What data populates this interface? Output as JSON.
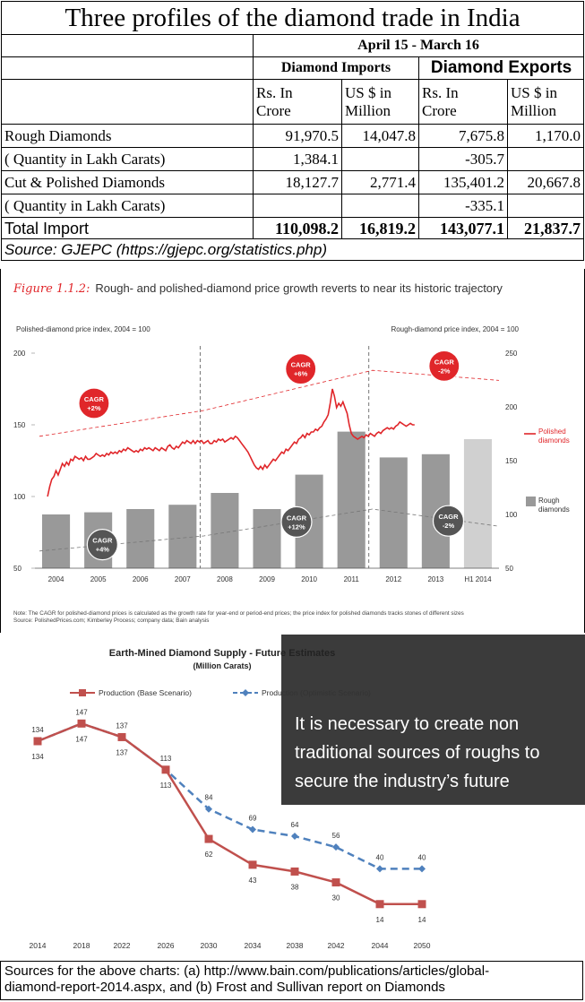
{
  "table": {
    "title": "Three profiles of the diamond trade in India",
    "period": "April 15 - March 16",
    "imports_header": "Diamond Imports",
    "exports_header": "Diamond Exports",
    "unit_rs_1": "Rs. In",
    "unit_rs_2": "Crore",
    "unit_us_1": "US $ in",
    "unit_us_2": "Million",
    "rows": [
      {
        "label": "Rough Diamonds",
        "imp_rs": "91,970.5",
        "imp_us": "14,047.8",
        "exp_rs": "7,675.8",
        "exp_us": "1,170.0"
      },
      {
        "label": "( Quantity in Lakh Carats)",
        "imp_rs": "1,384.1",
        "imp_us": "",
        "exp_rs": "-305.7",
        "exp_us": ""
      },
      {
        "label": "Cut & Polished Diamonds",
        "imp_rs": "18,127.7",
        "imp_us": "2,771.4",
        "exp_rs": "135,401.2",
        "exp_us": "20,667.8"
      },
      {
        "label": "( Quantity in Lakh Carats)",
        "imp_rs": "",
        "imp_us": "",
        "exp_rs": "-335.1",
        "exp_us": ""
      }
    ],
    "total": {
      "label": "Total Import",
      "imp_rs": "110,098.2",
      "imp_us": "16,819.2",
      "exp_rs": "143,077.1",
      "exp_us": "21,837.7"
    },
    "source": "Source: GJEPC (https://gjepc.org/statistics.php)"
  },
  "chart_data": [
    {
      "type": "bar",
      "figure_label": "Figure 1.1.2:",
      "title": "Rough- and polished-diamond price growth reverts to near its historic trajectory",
      "left_axis_label": "Polished-diamond price index, 2004 = 100",
      "right_axis_label": "Rough-diamond price index, 2004 = 100",
      "left_ticks": [
        50,
        100,
        150,
        200
      ],
      "right_ticks": [
        50,
        100,
        150,
        200,
        250
      ],
      "ylim_left": [
        50,
        200
      ],
      "ylim_right": [
        50,
        250
      ],
      "categories": [
        "2004",
        "2005",
        "2006",
        "2007",
        "2008",
        "2009",
        "2010",
        "2011",
        "2012",
        "2013",
        "H1 2014"
      ],
      "series": [
        {
          "name": "Rough diamonds",
          "axis": "right",
          "values": [
            100,
            102,
            105,
            109,
            120,
            105,
            137,
            177,
            153,
            156,
            170
          ]
        },
        {
          "name": "Polished diamonds",
          "axis": "left",
          "values": [
            [
              0,
              100
            ],
            [
              0.05,
              107
            ],
            [
              0.1,
              112
            ],
            [
              0.15,
              114
            ],
            [
              0.2,
              118
            ],
            [
              0.25,
              115
            ],
            [
              0.3,
              119
            ],
            [
              0.35,
              123
            ],
            [
              0.4,
              121
            ],
            [
              0.45,
              124
            ],
            [
              0.5,
              122
            ],
            [
              0.55,
              126
            ],
            [
              0.6,
              125
            ],
            [
              0.65,
              128
            ],
            [
              0.7,
              127
            ],
            [
              0.75,
              126
            ],
            [
              0.8,
              127
            ],
            [
              0.85,
              125
            ],
            [
              0.9,
              128
            ],
            [
              0.95,
              126
            ],
            [
              1.0,
              126
            ],
            [
              1.05,
              127
            ],
            [
              1.1,
              128
            ],
            [
              1.15,
              130
            ],
            [
              1.2,
              129
            ],
            [
              1.25,
              128
            ],
            [
              1.3,
              129
            ],
            [
              1.35,
              128
            ],
            [
              1.4,
              130
            ],
            [
              1.45,
              129
            ],
            [
              1.5,
              131
            ],
            [
              1.55,
              130
            ],
            [
              1.6,
              131
            ],
            [
              1.65,
              130
            ],
            [
              1.7,
              132
            ],
            [
              1.75,
              131
            ],
            [
              1.8,
              133
            ],
            [
              1.85,
              132
            ],
            [
              1.9,
              134
            ],
            [
              1.95,
              133
            ],
            [
              2.0,
              132
            ],
            [
              2.05,
              131
            ],
            [
              2.1,
              132
            ],
            [
              2.15,
              131
            ],
            [
              2.2,
              133
            ],
            [
              2.25,
              132
            ],
            [
              2.3,
              134
            ],
            [
              2.35,
              133
            ],
            [
              2.4,
              134
            ],
            [
              2.45,
              133
            ],
            [
              2.5,
              132
            ],
            [
              2.55,
              134
            ],
            [
              2.6,
              133
            ],
            [
              2.65,
              132
            ],
            [
              2.7,
              134
            ],
            [
              2.75,
              133
            ],
            [
              2.8,
              132
            ],
            [
              2.85,
              135
            ],
            [
              2.9,
              136
            ],
            [
              2.95,
              134
            ],
            [
              3.0,
              133
            ],
            [
              3.05,
              135
            ],
            [
              3.1,
              134
            ],
            [
              3.15,
              136
            ],
            [
              3.2,
              138
            ],
            [
              3.25,
              137
            ],
            [
              3.3,
              139
            ],
            [
              3.35,
              138
            ],
            [
              3.4,
              137
            ],
            [
              3.45,
              139
            ],
            [
              3.5,
              137
            ],
            [
              3.55,
              139
            ],
            [
              3.6,
              138
            ],
            [
              3.65,
              139
            ],
            [
              3.7,
              137
            ],
            [
              3.75,
              138
            ],
            [
              3.8,
              139
            ],
            [
              3.85,
              137
            ],
            [
              3.9,
              137
            ],
            [
              3.95,
              139
            ],
            [
              4.0,
              138
            ],
            [
              4.05,
              140
            ],
            [
              4.1,
              139
            ],
            [
              4.15,
              140
            ],
            [
              4.2,
              138
            ],
            [
              4.25,
              139
            ],
            [
              4.3,
              140
            ],
            [
              4.35,
              141
            ],
            [
              4.4,
              140
            ],
            [
              4.45,
              142
            ],
            [
              4.5,
              141
            ],
            [
              4.55,
              139
            ],
            [
              4.6,
              137
            ],
            [
              4.65,
              135
            ],
            [
              4.7,
              133
            ],
            [
              4.75,
              131
            ],
            [
              4.8,
              128
            ],
            [
              4.85,
              125
            ],
            [
              4.9,
              122
            ],
            [
              4.95,
              120
            ],
            [
              5.0,
              119
            ],
            [
              5.05,
              121
            ],
            [
              5.1,
              119
            ],
            [
              5.15,
              122
            ],
            [
              5.2,
              120
            ],
            [
              5.25,
              122
            ],
            [
              5.3,
              124
            ],
            [
              5.35,
              126
            ],
            [
              5.4,
              125
            ],
            [
              5.45,
              127
            ],
            [
              5.5,
              129
            ],
            [
              5.55,
              131
            ],
            [
              5.6,
              130
            ],
            [
              5.65,
              133
            ],
            [
              5.7,
              132
            ],
            [
              5.75,
              134
            ],
            [
              5.8,
              136
            ],
            [
              5.85,
              138
            ],
            [
              5.9,
              137
            ],
            [
              5.95,
              140
            ],
            [
              6.0,
              141
            ],
            [
              6.05,
              143
            ],
            [
              6.1,
              141
            ],
            [
              6.15,
              144
            ],
            [
              6.2,
              143
            ],
            [
              6.25,
              145
            ],
            [
              6.3,
              145
            ],
            [
              6.35,
              147
            ],
            [
              6.4,
              146
            ],
            [
              6.45,
              148
            ],
            [
              6.5,
              149
            ],
            [
              6.55,
              152
            ],
            [
              6.6,
              154
            ],
            [
              6.65,
              157
            ],
            [
              6.7,
              165
            ],
            [
              6.75,
              175
            ],
            [
              6.8,
              170
            ],
            [
              6.85,
              162
            ],
            [
              6.9,
              165
            ],
            [
              6.95,
              163
            ],
            [
              7.0,
              166
            ],
            [
              7.05,
              162
            ],
            [
              7.1,
              158
            ],
            [
              7.15,
              150
            ],
            [
              7.2,
              144
            ],
            [
              7.25,
              142
            ],
            [
              7.3,
              141
            ],
            [
              7.35,
              140
            ],
            [
              7.4,
              141
            ],
            [
              7.45,
              142
            ],
            [
              7.5,
              141
            ],
            [
              7.55,
              143
            ],
            [
              7.6,
              142
            ],
            [
              7.65,
              144
            ],
            [
              7.7,
              143
            ],
            [
              7.75,
              142
            ],
            [
              7.8,
              144
            ],
            [
              7.85,
              145
            ],
            [
              7.9,
              144
            ],
            [
              7.95,
              146
            ],
            [
              8.0,
              147
            ],
            [
              8.05,
              148
            ],
            [
              8.1,
              147
            ],
            [
              8.15,
              148
            ],
            [
              8.2,
              147
            ],
            [
              8.25,
              149
            ],
            [
              8.3,
              150
            ],
            [
              8.35,
              152
            ],
            [
              8.4,
              151
            ],
            [
              8.45,
              150
            ],
            [
              8.5,
              149
            ],
            [
              8.55,
              150
            ],
            [
              8.6,
              151
            ],
            [
              8.65,
              150
            ],
            [
              8.7,
              150
            ]
          ]
        }
      ],
      "trend_labels": [
        {
          "text1": "CAGR",
          "text2": "+2%",
          "series": "polished"
        },
        {
          "text1": "CAGR",
          "text2": "+6%",
          "series": "polished"
        },
        {
          "text1": "CAGR",
          "text2": "-2%",
          "series": "polished"
        },
        {
          "text1": "CAGR",
          "text2": "+4%",
          "series": "rough"
        },
        {
          "text1": "CAGR",
          "text2": "+12%",
          "series": "rough"
        },
        {
          "text1": "CAGR",
          "text2": "-2%",
          "series": "rough"
        }
      ],
      "legend": {
        "polished_1": "Polished",
        "polished_2": "diamonds",
        "rough_1": "Rough",
        "rough_2": "diamonds"
      },
      "note1": "Note: The CAGR for polished-diamond prices is calculated as the growth rate for year-end or period-end prices; the price index for polished diamonds tracks stones of different sizes",
      "note2": "Source: PolishedPrices.com; Kimberley Process; company data; Bain analysis",
      "colors": {
        "polished": "#e0262a",
        "rough": "#999999",
        "rough_last": "#d0d0d0"
      }
    },
    {
      "type": "line",
      "title": "Earth-Mined Diamond Supply - Future Estimates",
      "subtitle": "(Million Carats)",
      "categories": [
        "2014",
        "2018",
        "2022",
        "2026",
        "2030",
        "2034",
        "2038",
        "2042",
        "2044",
        "2050"
      ],
      "series": [
        {
          "name": "Production (Base Scenario)",
          "values": [
            134,
            147,
            137,
            113,
            62,
            43,
            38,
            30,
            14,
            14
          ]
        },
        {
          "name": "Production (Optimistic Scenario)",
          "values": [
            134,
            147,
            137,
            113,
            84,
            69,
            64,
            56,
            40,
            40
          ]
        }
      ],
      "ylim": [
        0,
        160
      ],
      "colors": {
        "base": "#c0504d",
        "optimistic": "#4f81bd",
        "callout_bg": "#3b3b3b"
      },
      "callout": [
        "It is necessary to create non",
        "traditional sources of roughs to",
        "secure the industry’s future"
      ]
    }
  ],
  "footer": {
    "line1": "Sources for the above charts: (a) http://www.bain.com/publications/articles/global-",
    "line2": "diamond-report-2014.aspx, and (b) Frost and Sullivan report on Diamonds"
  }
}
